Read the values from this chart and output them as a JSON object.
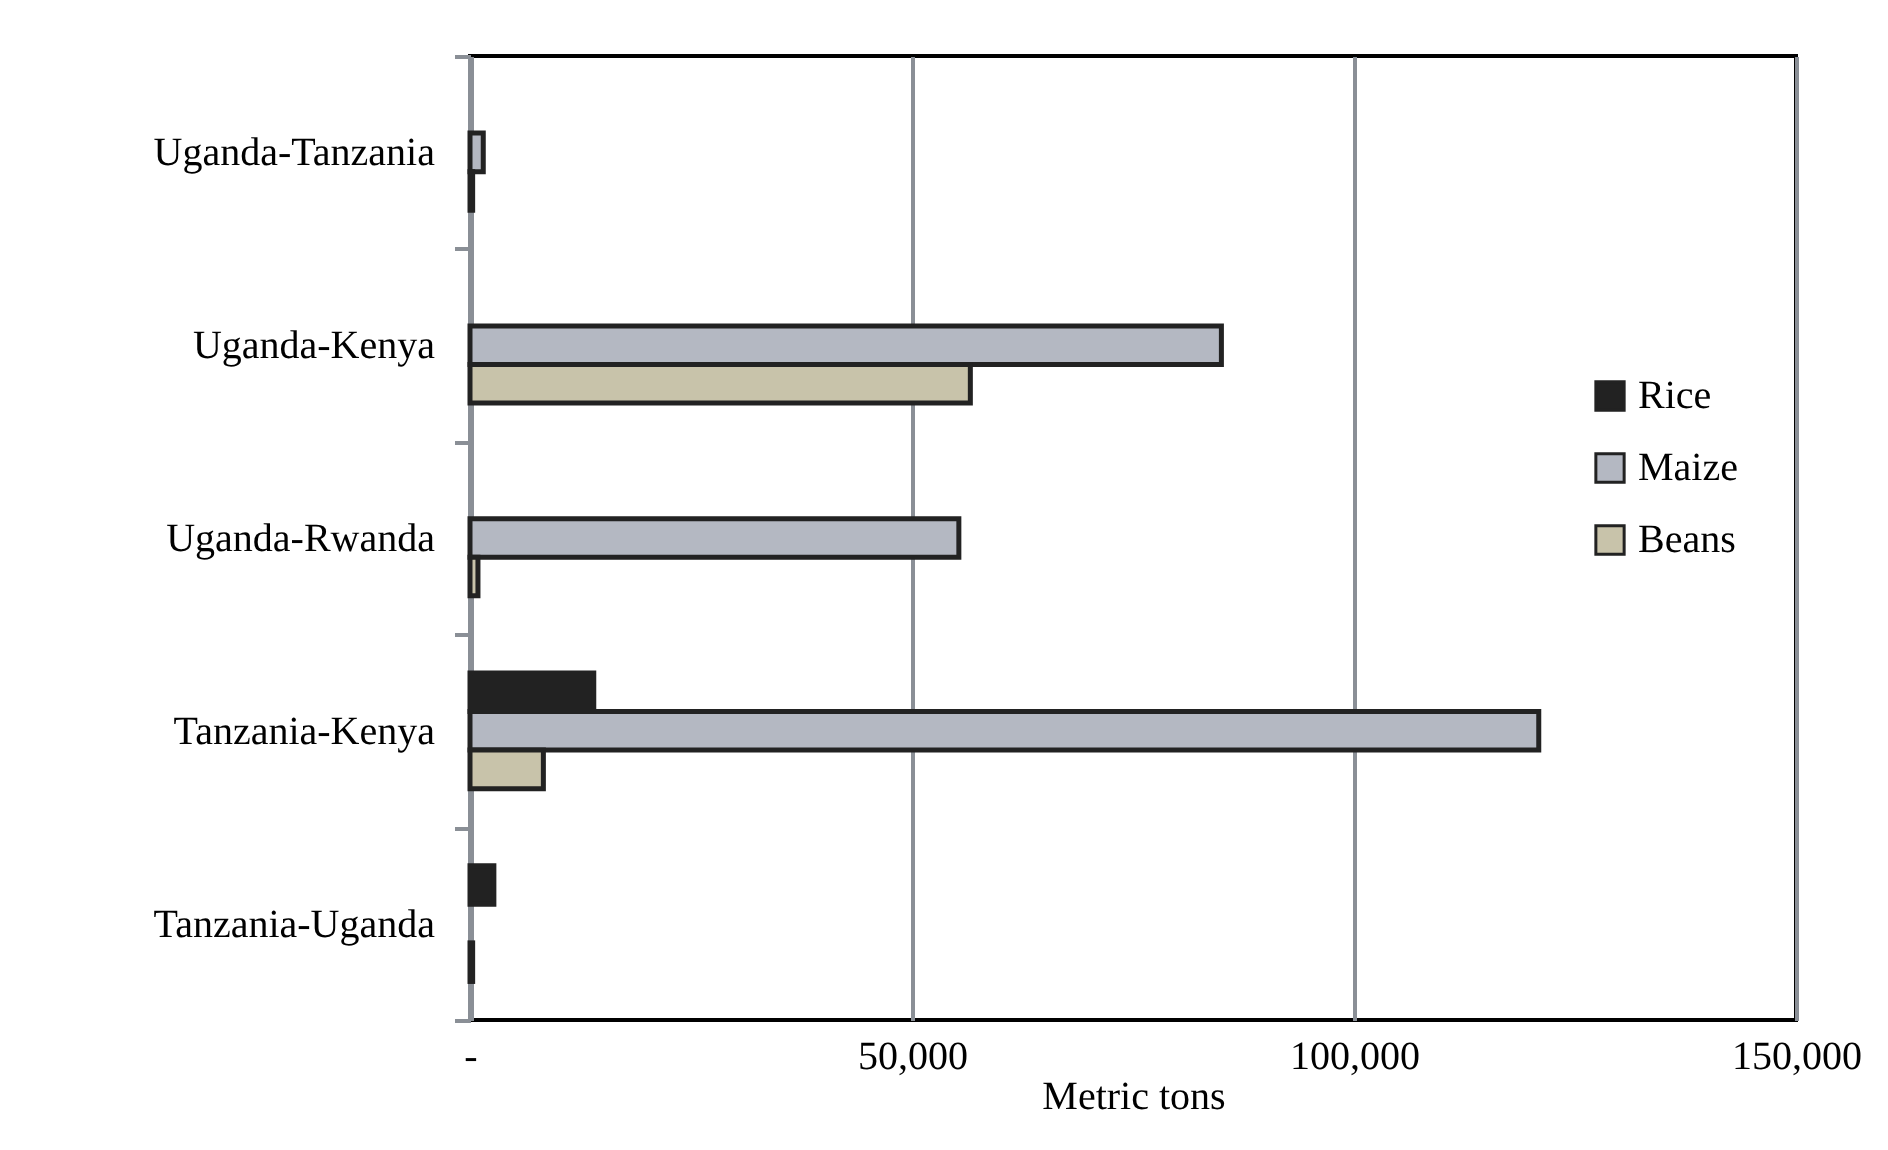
{
  "chart_data": {
    "type": "bar",
    "orientation": "horizontal",
    "categories": [
      "Uganda-Tanzania",
      "Uganda-Kenya",
      "Uganda-Rwanda",
      "Tanzania-Kenya",
      "Tanzania-Uganda"
    ],
    "series": [
      {
        "name": "Rice",
        "color": "#222222",
        "values": [
          0,
          0,
          0,
          14000,
          2700
        ]
      },
      {
        "name": "Maize",
        "color": "#b4b8c2",
        "values": [
          1500,
          85000,
          55300,
          120900,
          0
        ]
      },
      {
        "name": "Beans",
        "color": "#c8c3aa",
        "values": [
          300,
          56600,
          900,
          8300,
          300
        ]
      }
    ],
    "xlabel": "Metric tons",
    "xlim": [
      0,
      150000
    ],
    "xticks": [
      {
        "value": 0,
        "label": "-"
      },
      {
        "value": 50000,
        "label": "50,000"
      },
      {
        "value": 100000,
        "label": "100,000"
      },
      {
        "value": 150000,
        "label": "150,000"
      }
    ],
    "grid": "x",
    "legend": "right"
  }
}
